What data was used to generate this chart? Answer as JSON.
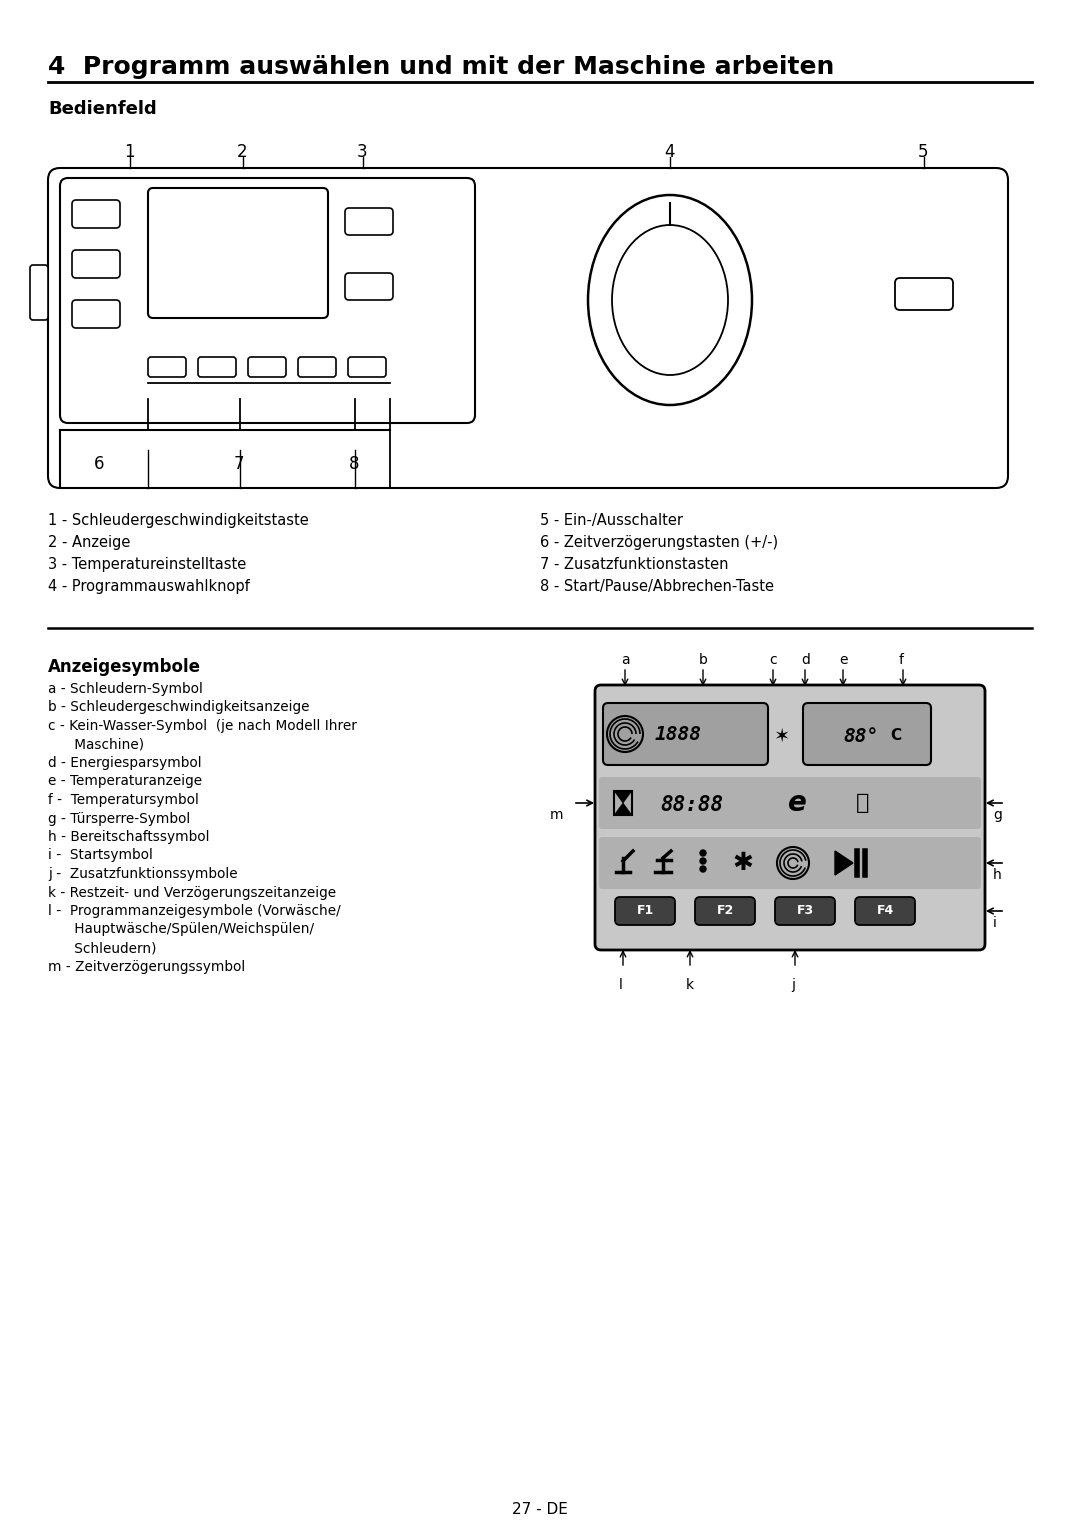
{
  "title": "4  Programm auswählen und mit der Maschine arbeiten",
  "subtitle": "Bedienfeld",
  "section2_title": "Anzeigesymbole",
  "labels_left": [
    "1 - Schleudergeschwindigkeitstaste",
    "2 - Anzeige",
    "3 - Temperatureinstelltaste",
    "4 - Programmauswahlknopf"
  ],
  "labels_right": [
    "5 - Ein-/Ausschalter",
    "6 - Zeitverzögerungstasten (+/-)",
    "7 - Zusatzfunktionstasten",
    "8 - Start/Pause/Abbrechen-Taste"
  ],
  "symbol_labels": [
    "a - Schleudern-Symbol",
    "b - Schleudergeschwindigkeitsanzeige",
    "c - Kein-Wasser-Symbol  (je nach Modell Ihrer",
    "      Maschine)",
    "d - Energiesparsymbol",
    "e - Temperaturanzeige",
    "f -  Temperatursymbol",
    "g - Türsperre-Symbol",
    "h - Bereitschaftssymbol",
    "i -  Startsymbol",
    "j -  Zusatzfunktionssymbole",
    "k - Restzeit- und Verzögerungszeitanzeige",
    "l -  Programmanzeigesymbole (Vorwäsche/",
    "      Hauptwäsche/Spülen/Weichspülen/",
    "      Schleudern)",
    "m - Zeitverzögerungssymbol"
  ],
  "page_number": "27 - DE",
  "bg_color": "#ffffff",
  "text_color": "#000000"
}
